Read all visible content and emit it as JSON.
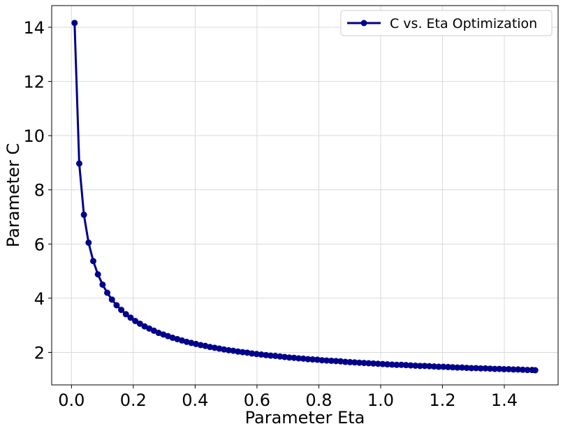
{
  "chart_data": {
    "type": "line",
    "title": "",
    "xlabel": "Parameter Eta",
    "ylabel": "Parameter C",
    "xlim": [
      -0.064,
      1.574
    ],
    "ylim": [
      0.8,
      14.8
    ],
    "xticks": [
      0.0,
      0.2,
      0.4,
      0.6,
      0.8,
      1.0,
      1.2,
      1.4
    ],
    "xtick_labels": [
      "0.0",
      "0.2",
      "0.4",
      "0.6",
      "0.8",
      "1.0",
      "1.2",
      "1.4"
    ],
    "yticks": [
      2,
      4,
      6,
      8,
      10,
      12,
      14
    ],
    "ytick_labels": [
      "2",
      "4",
      "6",
      "8",
      "10",
      "12",
      "14"
    ],
    "grid": true,
    "legend_position": "upper right",
    "series": [
      {
        "name": "C vs. Eta Optimization",
        "color": "#00008b",
        "marker": "circle",
        "x": [
          0.01,
          0.0251,
          0.0402,
          0.0553,
          0.0704,
          0.0855,
          0.1006,
          0.1157,
          0.1308,
          0.1459,
          0.161,
          0.1761,
          0.1912,
          0.2063,
          0.2214,
          0.2365,
          0.2516,
          0.2667,
          0.2818,
          0.2969,
          0.312,
          0.3271,
          0.3422,
          0.3573,
          0.3724,
          0.3875,
          0.4026,
          0.4177,
          0.4328,
          0.4479,
          0.463,
          0.4781,
          0.4932,
          0.5083,
          0.5234,
          0.5385,
          0.5536,
          0.5687,
          0.5838,
          0.5989,
          0.614,
          0.6291,
          0.6442,
          0.6593,
          0.6744,
          0.6895,
          0.7046,
          0.7197,
          0.7348,
          0.7499,
          0.765,
          0.7801,
          0.7952,
          0.8103,
          0.8254,
          0.8405,
          0.8556,
          0.8707,
          0.8858,
          0.9009,
          0.916,
          0.9311,
          0.9462,
          0.9613,
          0.9764,
          0.9915,
          1.0066,
          1.0217,
          1.0368,
          1.0519,
          1.067,
          1.0821,
          1.0972,
          1.1123,
          1.1274,
          1.1425,
          1.1576,
          1.1727,
          1.1878,
          1.2029,
          1.218,
          1.2331,
          1.2482,
          1.2633,
          1.2784,
          1.2935,
          1.3086,
          1.3237,
          1.3388,
          1.3539,
          1.369,
          1.3841,
          1.3992,
          1.4143,
          1.4294,
          1.4445,
          1.4596,
          1.4747,
          1.4898,
          1.5
        ],
        "y": [
          14.16,
          8.97,
          7.08,
          6.05,
          5.37,
          4.88,
          4.5,
          4.2,
          3.95,
          3.74,
          3.57,
          3.41,
          3.28,
          3.16,
          3.06,
          2.96,
          2.88,
          2.8,
          2.72,
          2.66,
          2.6,
          2.54,
          2.49,
          2.44,
          2.39,
          2.35,
          2.31,
          2.27,
          2.24,
          2.2,
          2.17,
          2.14,
          2.11,
          2.08,
          2.06,
          2.03,
          2.01,
          1.99,
          1.96,
          1.94,
          1.92,
          1.9,
          1.88,
          1.87,
          1.85,
          1.83,
          1.81,
          1.8,
          1.78,
          1.77,
          1.75,
          1.74,
          1.73,
          1.71,
          1.7,
          1.69,
          1.68,
          1.67,
          1.65,
          1.64,
          1.63,
          1.62,
          1.61,
          1.6,
          1.59,
          1.58,
          1.57,
          1.56,
          1.55,
          1.54,
          1.54,
          1.53,
          1.52,
          1.51,
          1.5,
          1.5,
          1.49,
          1.48,
          1.47,
          1.47,
          1.46,
          1.45,
          1.44,
          1.44,
          1.43,
          1.42,
          1.42,
          1.41,
          1.41,
          1.4,
          1.39,
          1.39,
          1.38,
          1.38,
          1.37,
          1.37,
          1.36,
          1.35,
          1.35,
          1.34
        ]
      }
    ]
  }
}
